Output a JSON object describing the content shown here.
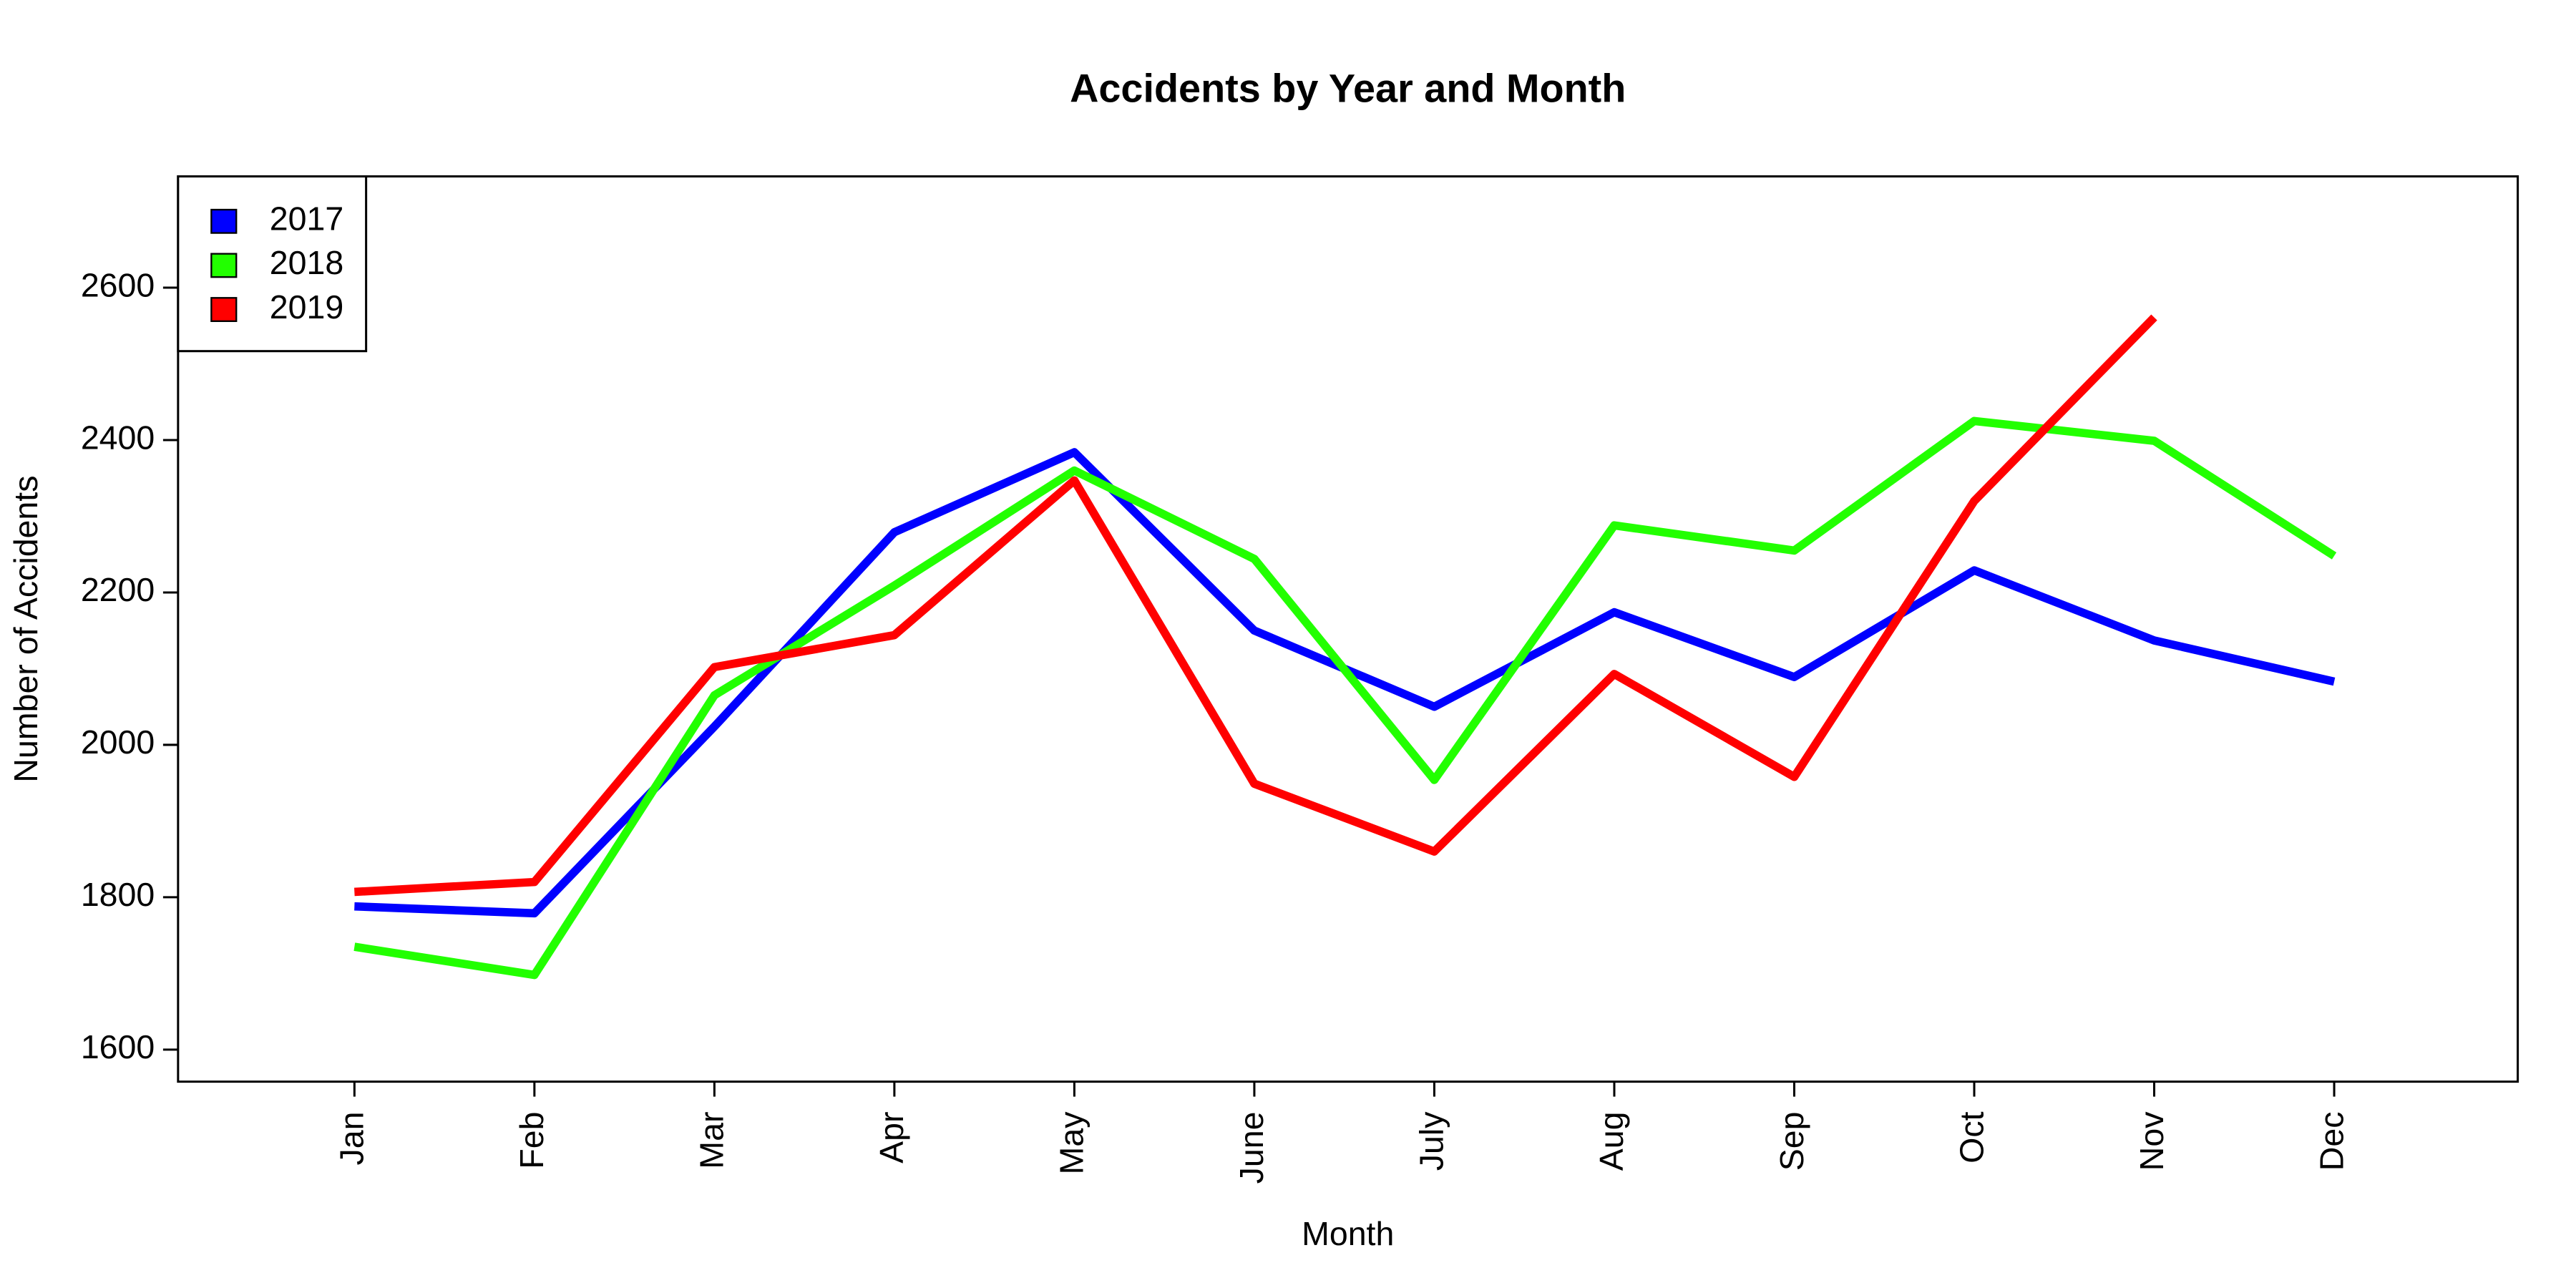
{
  "chart_data": {
    "type": "line",
    "title": "Accidents by Year and Month",
    "x_label": "Month",
    "y_label": "Number of Accidents",
    "categories": [
      "Jan",
      "Feb",
      "Mar",
      "Apr",
      "May",
      "June",
      "July",
      "Aug",
      "Sep",
      "Oct",
      "Nov",
      "Dec"
    ],
    "series": [
      {
        "name": "2017",
        "color": "#0000ff",
        "values": [
          1788,
          1779,
          2024,
          2279,
          2384,
          2150,
          2050,
          2174,
          2089,
          2229,
          2137,
          2083
        ]
      },
      {
        "name": "2018",
        "color": "#22ff00",
        "values": [
          1735,
          1698,
          2065,
          2209,
          2360,
          2244,
          1954,
          2288,
          2255,
          2425,
          2399,
          2248
        ]
      },
      {
        "name": "2019",
        "color": "#ff0000",
        "values": [
          1807,
          1820,
          2102,
          2144,
          2347,
          1949,
          1860,
          2093,
          1958,
          2320,
          2561,
          null
        ]
      }
    ],
    "ylim": [
      1558,
      2746
    ],
    "yticks": [
      1600,
      1800,
      2000,
      2200,
      2400,
      2600
    ],
    "legend": "top-left"
  }
}
